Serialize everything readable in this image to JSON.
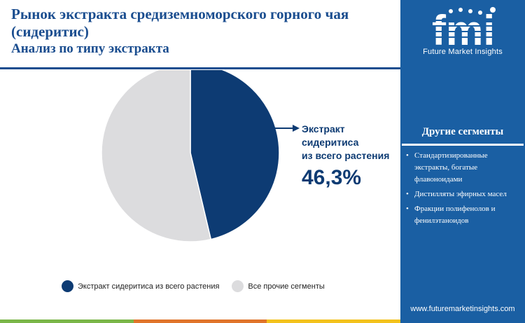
{
  "header": {
    "title": "Рынок экстракта средиземноморского горного чая (сидеритис)",
    "subtitle": "Анализ по типу экстракта"
  },
  "callout": {
    "label": "Экстракт\nсидеритиса\nиз всего растения",
    "value": "46,3%"
  },
  "legend": {
    "items": [
      {
        "label": "Экстракт сидеритиса из всего растения",
        "color": "#0d3b73"
      },
      {
        "label": "Все прочие сегменты",
        "color": "#dcdcde"
      }
    ]
  },
  "chart_data": {
    "type": "pie",
    "categories": [
      "Экстракт сидеритиса из всего растения",
      "Все прочие сегменты"
    ],
    "values": [
      46.3,
      53.7
    ],
    "colors": [
      "#0d3b73",
      "#dcdcde"
    ],
    "start": "12 o'clock, clockwise",
    "title": "Рынок экстракта средиземноморского горного чая (сидеритис)",
    "subtitle": "Анализ по типу экстракта",
    "legend_position": "bottom"
  },
  "sidebar": {
    "logo_text": "fmi",
    "tagline": "Future Market Insights",
    "segments_title": "Другие сегменты",
    "segments": [
      "Стандартизированные экстракты, богатые флавоноидами",
      "Дистилляты эфирных масел",
      "Фракции полифенолов и фенилэтаноидов"
    ],
    "bullet": "•",
    "url": "www.futuremarketinsights.com"
  },
  "bottom_bar_colors": [
    "#7ab648",
    "#e0742a",
    "#f3c21c"
  ]
}
